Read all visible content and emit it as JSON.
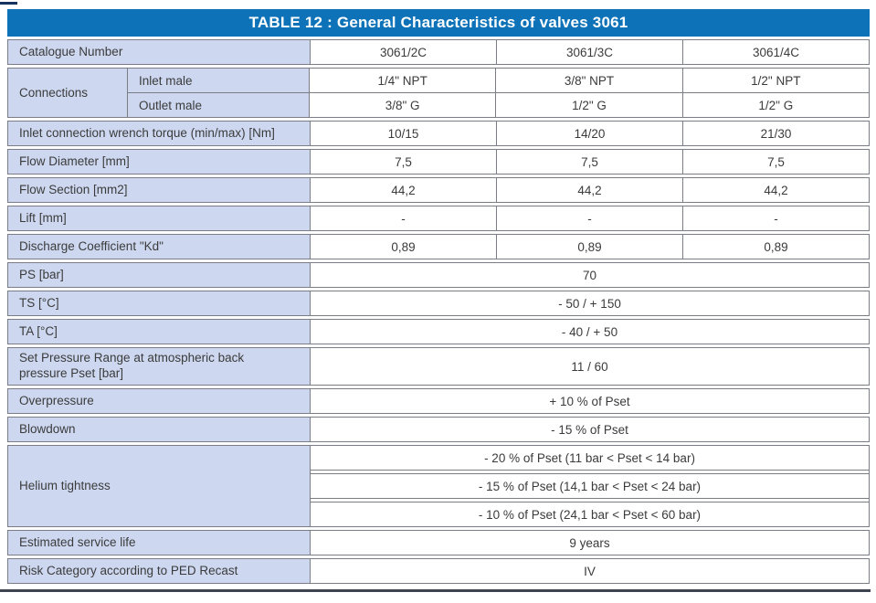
{
  "title": "TABLE 12 : General Characteristics of valves 3061",
  "colors": {
    "header_bg": "#0d72b8",
    "label_bg": "#cdd8f0",
    "border": "#7b7d84",
    "text": "#3b3b3b",
    "rule": "#3d4350"
  },
  "rows": {
    "catalogue": {
      "label": "Catalogue Number",
      "values": [
        "3061/2C",
        "3061/3C",
        "3061/4C"
      ]
    },
    "connections": {
      "label": "Connections",
      "inlet": {
        "label": "Inlet male",
        "values": [
          "1/4\" NPT",
          "3/8\" NPT",
          "1/2\" NPT"
        ]
      },
      "outlet": {
        "label": "Outlet male",
        "values": [
          "3/8\" G",
          "1/2\" G",
          "1/2\" G"
        ]
      }
    },
    "torque": {
      "label": "Inlet connection wrench torque (min/max) [Nm]",
      "values": [
        "10/15",
        "14/20",
        "21/30"
      ]
    },
    "flow_diameter": {
      "label": "Flow Diameter [mm]",
      "values": [
        "7,5",
        "7,5",
        "7,5"
      ]
    },
    "flow_section": {
      "label": "Flow Section [mm2]",
      "values": [
        "44,2",
        "44,2",
        "44,2"
      ]
    },
    "lift": {
      "label": "Lift [mm]",
      "values": [
        "-",
        "-",
        "-"
      ]
    },
    "discharge": {
      "label": "Discharge Coefficient \"Kd\"",
      "values": [
        "0,89",
        "0,89",
        "0,89"
      ]
    },
    "ps": {
      "label": "PS [bar]",
      "value": "70"
    },
    "ts": {
      "label": "TS [°C]",
      "value": "- 50 / + 150"
    },
    "ta": {
      "label": "TA [°C]",
      "value": "- 40 / + 50"
    },
    "set_pressure": {
      "label": "Set Pressure Range at atmospheric back pressure Pset [bar]",
      "value": "11 / 60"
    },
    "overpressure": {
      "label": "Overpressure",
      "value": "+ 10 % of Pset"
    },
    "blowdown": {
      "label": "Blowdown",
      "value": "- 15 % of Pset"
    },
    "helium": {
      "label": "Helium tightness",
      "values": [
        "- 20 % of Pset  (11 bar < Pset < 14 bar)",
        "- 15 % of Pset  (14,1 bar < Pset < 24 bar)",
        "- 10 % of Pset  (24,1 bar < Pset < 60 bar)"
      ]
    },
    "service_life": {
      "label": "Estimated service life",
      "value": "9 years"
    },
    "risk": {
      "label": "Risk Category according to PED Recast",
      "value": "IV"
    }
  }
}
